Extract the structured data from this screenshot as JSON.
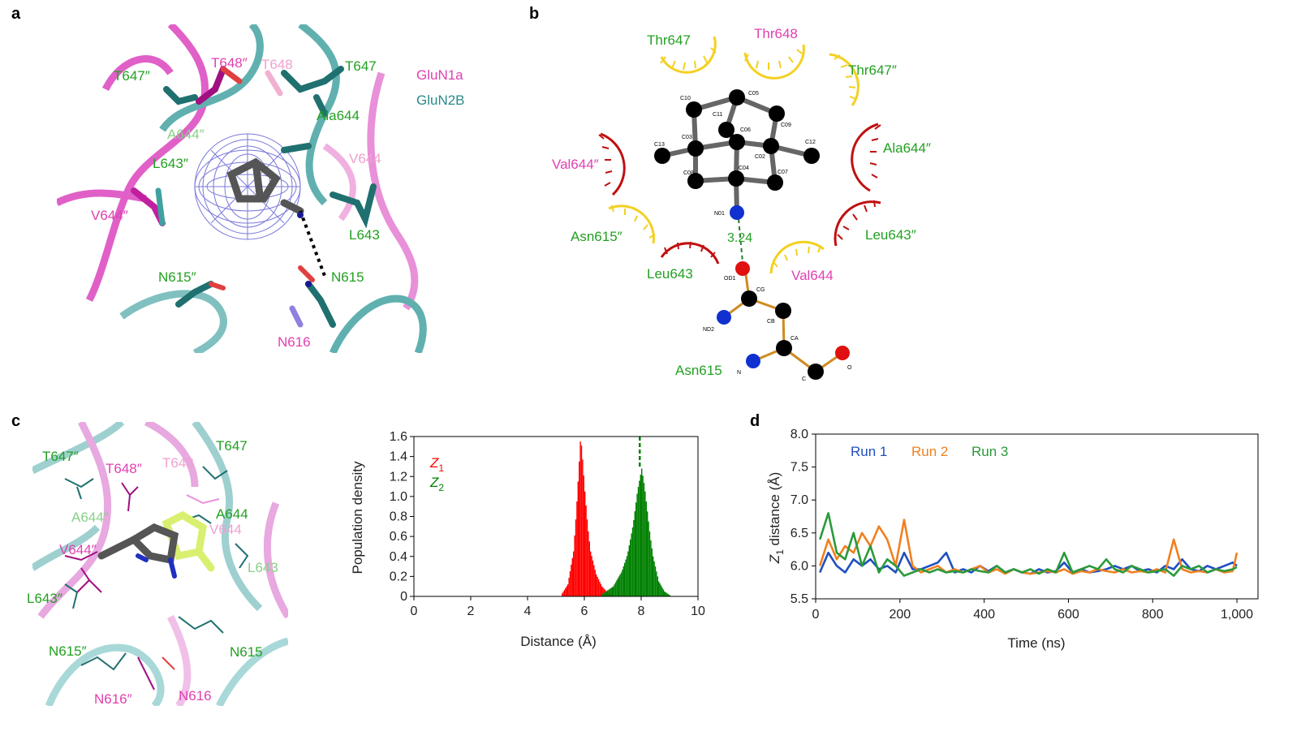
{
  "panels": {
    "a": {
      "letter": "a",
      "labels": [
        {
          "text": "T647″",
          "color": "#22a022"
        },
        {
          "text": "T648″",
          "color": "#e040b0"
        },
        {
          "text": "T648",
          "color": "#f0a0d0"
        },
        {
          "text": "T647",
          "color": "#22a022"
        },
        {
          "text": "GluN1a",
          "color": "#e040b0"
        },
        {
          "text": "GluN2B",
          "color": "#2a8a8a"
        },
        {
          "text": "A644″",
          "color": "#88d088"
        },
        {
          "text": "Ala644",
          "color": "#22a022"
        },
        {
          "text": "V644",
          "color": "#f0a0d0"
        },
        {
          "text": "L643″",
          "color": "#22a022"
        },
        {
          "text": "V644″",
          "color": "#e040b0"
        },
        {
          "text": "L643",
          "color": "#22a022"
        },
        {
          "text": "N615″",
          "color": "#22a022"
        },
        {
          "text": "N615",
          "color": "#22a022"
        },
        {
          "text": "N616",
          "color": "#e040b0"
        }
      ]
    },
    "b": {
      "letter": "b",
      "residue_labels": [
        {
          "text": "Thr647",
          "color": "#22a022"
        },
        {
          "text": "Thr648",
          "color": "#e040b0"
        },
        {
          "text": "Thr647″",
          "color": "#22a022"
        },
        {
          "text": "Val644″",
          "color": "#e040b0"
        },
        {
          "text": "Ala644″",
          "color": "#22a022"
        },
        {
          "text": "Asn615″",
          "color": "#22a022"
        },
        {
          "text": "Leu643″",
          "color": "#22a022"
        },
        {
          "text": "Leu643",
          "color": "#22a022"
        },
        {
          "text": "Val644",
          "color": "#e040b0"
        },
        {
          "text": "Asn615",
          "color": "#22a022"
        }
      ],
      "atom_labels": [
        "C10",
        "C05",
        "C11",
        "C06",
        "C09",
        "C03",
        "C13",
        "C02",
        "C12",
        "C08",
        "C04",
        "C07",
        "N01",
        "OD1",
        "CG",
        "ND2",
        "CB",
        "CA",
        "N",
        "C",
        "O"
      ],
      "hbond_distance": "3.24"
    },
    "c": {
      "letter": "c",
      "labels": [
        {
          "text": "T647″",
          "color": "#22a022"
        },
        {
          "text": "T647",
          "color": "#22a022"
        },
        {
          "text": "T648″",
          "color": "#e040b0"
        },
        {
          "text": "T648",
          "color": "#f0a0d0"
        },
        {
          "text": "A644″",
          "color": "#88d088"
        },
        {
          "text": "A644",
          "color": "#22a022"
        },
        {
          "text": "V644",
          "color": "#f0a0d0"
        },
        {
          "text": "V644″",
          "color": "#e040b0"
        },
        {
          "text": "L643",
          "color": "#88d088"
        },
        {
          "text": "L643″",
          "color": "#22a022"
        },
        {
          "text": "N615″",
          "color": "#22a022"
        },
        {
          "text": "N615",
          "color": "#22a022"
        },
        {
          "text": "N616″",
          "color": "#e040b0"
        },
        {
          "text": "N616",
          "color": "#e040b0"
        }
      ]
    },
    "d": {
      "letter": "d"
    }
  },
  "chart_data": [
    {
      "type": "bar",
      "title": "",
      "xlabel": "Distance (Å)",
      "ylabel": "Population density",
      "xlim": [
        0,
        10
      ],
      "ylim": [
        0,
        1.6
      ],
      "xticks": [
        "0",
        "2",
        "4",
        "6",
        "8",
        "10"
      ],
      "yticks": [
        "0",
        "0.2",
        "0.4",
        "0.6",
        "0.8",
        "1.0",
        "1.2",
        "1.4",
        "1.6"
      ],
      "legend_placement": "top-left",
      "series": [
        {
          "name": "Z1",
          "subscript": "1",
          "letter": "Z",
          "color": "#ff0000",
          "x": [
            5.2,
            5.4,
            5.6,
            5.7,
            5.8,
            5.85,
            5.9,
            6.0,
            6.1,
            6.2,
            6.4,
            6.6,
            6.8,
            7.0
          ],
          "values": [
            0.03,
            0.12,
            0.45,
            0.85,
            1.35,
            1.6,
            1.45,
            1.05,
            0.7,
            0.45,
            0.22,
            0.1,
            0.04,
            0.01
          ],
          "peak_marker": 5.85
        },
        {
          "name": "Z2",
          "subscript": "2",
          "letter": "Z",
          "color": "#008000",
          "x": [
            6.6,
            7.0,
            7.3,
            7.5,
            7.7,
            7.85,
            8.0,
            8.1,
            8.2,
            8.3,
            8.4,
            8.6,
            8.8,
            9.0
          ],
          "values": [
            0.02,
            0.1,
            0.25,
            0.42,
            0.72,
            1.05,
            1.28,
            1.1,
            0.85,
            0.6,
            0.4,
            0.15,
            0.05,
            0.01
          ],
          "peak_marker": 7.95
        }
      ]
    },
    {
      "type": "line",
      "title": "",
      "xlabel": "Time (ns)",
      "ylabel_letter": "Z",
      "ylabel_sub": "1",
      "ylabel_rest": " distance (Å)",
      "xlim": [
        0,
        1050
      ],
      "ylim": [
        5.5,
        8.0
      ],
      "xticks": [
        "0",
        "200",
        "400",
        "600",
        "800",
        "1,000"
      ],
      "yticks": [
        "5.5",
        "6.0",
        "6.5",
        "7.0",
        "7.5",
        "8.0"
      ],
      "legend_placement": "top-left",
      "x": [
        10,
        30,
        50,
        70,
        90,
        110,
        130,
        150,
        170,
        190,
        210,
        230,
        250,
        270,
        290,
        310,
        330,
        350,
        370,
        390,
        410,
        430,
        450,
        470,
        490,
        510,
        530,
        550,
        570,
        590,
        610,
        630,
        650,
        670,
        690,
        710,
        730,
        750,
        770,
        790,
        810,
        830,
        850,
        870,
        890,
        910,
        930,
        950,
        970,
        990,
        1000
      ],
      "series": [
        {
          "name": "Run 1",
          "color": "#1f4fbf",
          "values": [
            5.9,
            6.2,
            6.0,
            5.9,
            6.1,
            6.0,
            6.1,
            5.95,
            6.0,
            5.9,
            6.2,
            5.95,
            5.95,
            6.0,
            6.05,
            6.2,
            5.9,
            5.95,
            5.9,
            6.0,
            5.92,
            6.0,
            5.9,
            5.95,
            5.9,
            5.88,
            5.95,
            5.9,
            5.92,
            6.05,
            5.9,
            5.95,
            5.9,
            5.92,
            5.95,
            6.0,
            5.95,
            6.0,
            5.92,
            5.95,
            5.9,
            6.0,
            5.95,
            6.1,
            5.95,
            5.92,
            6.0,
            5.95,
            6.0,
            6.05,
            6.0
          ]
        },
        {
          "name": "Run 2",
          "color": "#f08020",
          "values": [
            6.0,
            6.4,
            6.1,
            6.3,
            6.2,
            6.5,
            6.3,
            6.6,
            6.4,
            6.0,
            6.7,
            6.0,
            5.9,
            5.95,
            6.0,
            5.9,
            5.95,
            5.9,
            5.95,
            6.0,
            5.9,
            5.95,
            5.88,
            5.95,
            5.9,
            5.88,
            5.9,
            5.92,
            5.9,
            5.95,
            5.88,
            5.92,
            5.9,
            5.95,
            5.92,
            5.9,
            5.95,
            5.9,
            5.92,
            5.9,
            5.95,
            5.9,
            6.4,
            5.95,
            5.9,
            5.92,
            5.9,
            5.95,
            5.9,
            5.92,
            6.2
          ]
        },
        {
          "name": "Run 3",
          "color": "#2a9a3a",
          "values": [
            6.4,
            6.8,
            6.2,
            6.1,
            6.5,
            6.0,
            6.3,
            5.9,
            6.1,
            6.0,
            5.85,
            5.9,
            5.95,
            5.9,
            5.95,
            5.9,
            5.92,
            5.9,
            5.95,
            5.92,
            5.9,
            6.0,
            5.9,
            5.95,
            5.9,
            5.95,
            5.88,
            5.95,
            5.9,
            6.2,
            5.9,
            5.95,
            6.0,
            5.95,
            6.1,
            5.95,
            5.9,
            6.0,
            5.95,
            5.9,
            5.92,
            5.95,
            5.85,
            6.0,
            5.95,
            6.0,
            5.9,
            5.95,
            5.92,
            5.95,
            5.98
          ]
        }
      ]
    }
  ]
}
